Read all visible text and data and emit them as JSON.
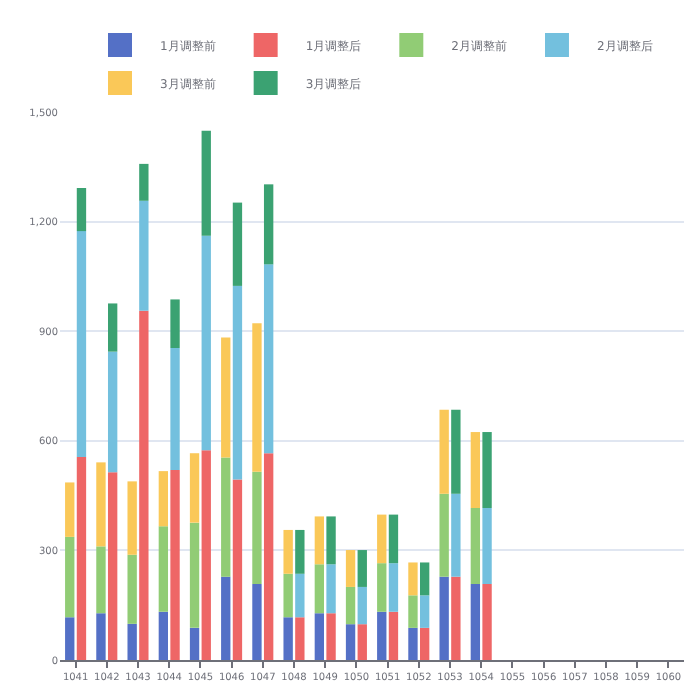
{
  "chart_data": {
    "type": "bar",
    "categories": [
      "1041",
      "1042",
      "1043",
      "1044",
      "1045",
      "1046",
      "1047",
      "1048",
      "1049",
      "1050",
      "1051",
      "1052",
      "1053",
      "1054",
      "1055",
      "1056",
      "1057",
      "1058",
      "1059",
      "1060"
    ],
    "series": [
      {
        "name": "1月调整前",
        "color": "#5470c6",
        "values": [
          117,
          128,
          99,
          132,
          88,
          228,
          208,
          117,
          128,
          98,
          132,
          88,
          228,
          208,
          null,
          null,
          null,
          null,
          null,
          null
        ],
        "base": [
          0,
          0,
          0,
          0,
          0,
          0,
          0,
          0,
          0,
          0,
          0,
          0,
          0,
          0,
          null,
          null,
          null,
          null,
          null,
          null
        ]
      },
      {
        "name": "1月调整后",
        "color": "#ee6666",
        "values": [
          556,
          514,
          956,
          520,
          574,
          494,
          566,
          117,
          128,
          98,
          132,
          88,
          228,
          208,
          null,
          null,
          null,
          null,
          null,
          null
        ],
        "base": [
          0,
          0,
          0,
          0,
          0,
          0,
          0,
          0,
          0,
          0,
          0,
          0,
          0,
          0,
          null,
          null,
          null,
          null,
          null,
          null
        ]
      },
      {
        "name": "2月调整前",
        "color": "#91cc75",
        "values": [
          220,
          183,
          189,
          234,
          288,
          326,
          307,
          119,
          134,
          102,
          133,
          89,
          227,
          208,
          null,
          null,
          null,
          null,
          null,
          null
        ],
        "base": [
          117,
          128,
          99,
          132,
          88,
          228,
          208,
          117,
          128,
          98,
          132,
          88,
          228,
          208,
          null,
          null,
          null,
          null,
          null,
          null
        ]
      },
      {
        "name": "2月调整后",
        "color": "#73c0de",
        "values": [
          618,
          330,
          301,
          334,
          587,
          530,
          517,
          119,
          134,
          102,
          133,
          89,
          227,
          208,
          null,
          null,
          null,
          null,
          null,
          null
        ],
        "base": [
          556,
          514,
          956,
          520,
          574,
          494,
          566,
          117,
          128,
          98,
          132,
          88,
          228,
          208,
          null,
          null,
          null,
          null,
          null,
          null
        ]
      },
      {
        "name": "3月调整前",
        "color": "#fac858",
        "values": [
          149,
          230,
          201,
          151,
          190,
          329,
          407,
          120,
          131,
          101,
          133,
          90,
          230,
          208,
          null,
          null,
          null,
          null,
          null,
          null
        ],
        "base": [
          337,
          311,
          288,
          366,
          376,
          554,
          515,
          236,
          262,
          200,
          265,
          177,
          455,
          416,
          null,
          null,
          null,
          null,
          null,
          null
        ]
      },
      {
        "name": "3月调整后",
        "color": "#3ba272",
        "values": [
          118,
          132,
          101,
          133,
          288,
          228,
          219,
          120,
          131,
          101,
          133,
          90,
          230,
          208,
          null,
          null,
          null,
          null,
          null,
          null
        ],
        "base": [
          1174,
          844,
          1257,
          854,
          1161,
          1024,
          1083,
          236,
          262,
          200,
          265,
          177,
          455,
          416,
          null,
          null,
          null,
          null,
          null,
          null
        ]
      }
    ],
    "ylim": [
      0,
      1500
    ],
    "yticks": [
      0,
      300,
      600,
      900,
      {
        "value": 1200,
        "label": "1,200"
      },
      {
        "value": 1500,
        "label": "1,500"
      }
    ],
    "grid": "y",
    "legend": "top"
  }
}
